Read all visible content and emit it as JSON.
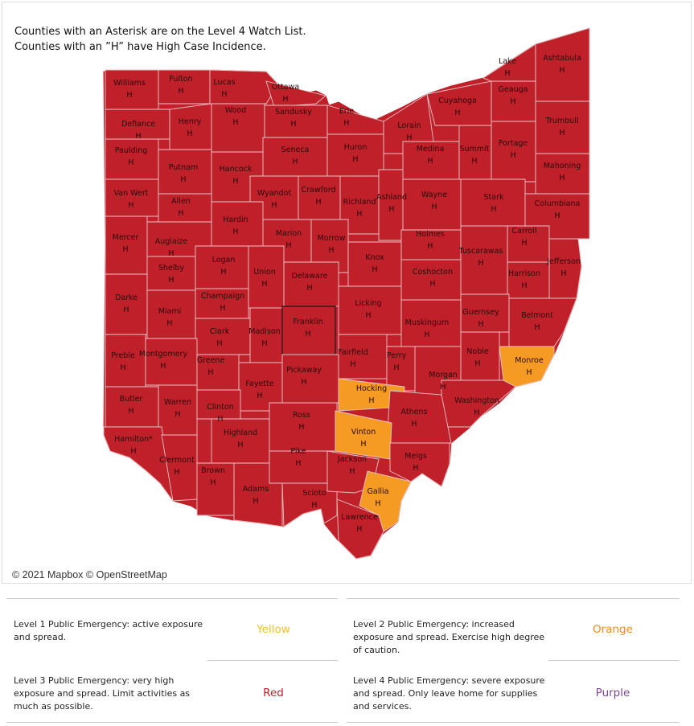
{
  "map": {
    "note_line1": "Counties with an Asterisk are on the Level 4 Watch List.",
    "note_line2": "Counties with an ”H” have High Case Incidence.",
    "credit": "© 2021 Mapbox © OpenStreetMap",
    "colors": {
      "red": "#c0202a",
      "orange": "#f59a23",
      "border": "#e8c4c4"
    },
    "counties": [
      {
        "name": "Williams",
        "mark": "H",
        "level": "Red"
      },
      {
        "name": "Fulton",
        "mark": "H",
        "level": "Red"
      },
      {
        "name": "Lucas",
        "mark": "H",
        "level": "Red"
      },
      {
        "name": "Ottawa",
        "mark": "H",
        "level": "Red"
      },
      {
        "name": "Defiance",
        "mark": "H",
        "level": "Red"
      },
      {
        "name": "Henry",
        "mark": "H",
        "level": "Red"
      },
      {
        "name": "Wood",
        "mark": "H",
        "level": "Red"
      },
      {
        "name": "Sandusky",
        "mark": "H",
        "level": "Red"
      },
      {
        "name": "Erie",
        "mark": "H",
        "level": "Red"
      },
      {
        "name": "Lorain",
        "mark": "H",
        "level": "Red"
      },
      {
        "name": "Cuyahoga",
        "mark": "H",
        "level": "Red"
      },
      {
        "name": "Lake",
        "mark": "H",
        "level": "Red"
      },
      {
        "name": "Geauga",
        "mark": "H",
        "level": "Red"
      },
      {
        "name": "Ashtabula",
        "mark": "H",
        "level": "Red"
      },
      {
        "name": "Trumbull",
        "mark": "H",
        "level": "Red"
      },
      {
        "name": "Paulding",
        "mark": "H",
        "level": "Red"
      },
      {
        "name": "Putnam",
        "mark": "H",
        "level": "Red"
      },
      {
        "name": "Hancock",
        "mark": "H",
        "level": "Red"
      },
      {
        "name": "Seneca",
        "mark": "H",
        "level": "Red"
      },
      {
        "name": "Huron",
        "mark": "H",
        "level": "Red"
      },
      {
        "name": "Medina",
        "mark": "H",
        "level": "Red"
      },
      {
        "name": "Summit",
        "mark": "H",
        "level": "Red"
      },
      {
        "name": "Portage",
        "mark": "H",
        "level": "Red"
      },
      {
        "name": "Mahoning",
        "mark": "H",
        "level": "Red"
      },
      {
        "name": "Van Wert",
        "mark": "H",
        "level": "Red"
      },
      {
        "name": "Allen",
        "mark": "H",
        "level": "Red"
      },
      {
        "name": "Wyandot",
        "mark": "H",
        "level": "Red"
      },
      {
        "name": "Crawford",
        "mark": "H",
        "level": "Red"
      },
      {
        "name": "Richland",
        "mark": "H",
        "level": "Red"
      },
      {
        "name": "Ashland",
        "mark": "H",
        "level": "Red"
      },
      {
        "name": "Wayne",
        "mark": "H",
        "level": "Red"
      },
      {
        "name": "Stark",
        "mark": "H",
        "level": "Red"
      },
      {
        "name": "Columbiana",
        "mark": "H",
        "level": "Red"
      },
      {
        "name": "Mercer",
        "mark": "H",
        "level": "Red"
      },
      {
        "name": "Auglaize",
        "mark": "H",
        "level": "Red"
      },
      {
        "name": "Hardin",
        "mark": "H",
        "level": "Red"
      },
      {
        "name": "Marion",
        "mark": "H",
        "level": "Red"
      },
      {
        "name": "Morrow",
        "mark": "H",
        "level": "Red"
      },
      {
        "name": "Knox",
        "mark": "H",
        "level": "Red"
      },
      {
        "name": "Holmes",
        "mark": "H",
        "level": "Red"
      },
      {
        "name": "Tuscarawas",
        "mark": "H",
        "level": "Red"
      },
      {
        "name": "Carroll",
        "mark": "H",
        "level": "Red"
      },
      {
        "name": "Jefferson",
        "mark": "H",
        "level": "Red"
      },
      {
        "name": "Shelby",
        "mark": "H",
        "level": "Red"
      },
      {
        "name": "Logan",
        "mark": "H",
        "level": "Red"
      },
      {
        "name": "Union",
        "mark": "H",
        "level": "Red"
      },
      {
        "name": "Delaware",
        "mark": "H",
        "level": "Red"
      },
      {
        "name": "Coshocton",
        "mark": "H",
        "level": "Red"
      },
      {
        "name": "Harrison",
        "mark": "H",
        "level": "Red"
      },
      {
        "name": "Darke",
        "mark": "H",
        "level": "Red"
      },
      {
        "name": "Champaign",
        "mark": "H",
        "level": "Red"
      },
      {
        "name": "Licking",
        "mark": "H",
        "level": "Red"
      },
      {
        "name": "Guernsey",
        "mark": "H",
        "level": "Red"
      },
      {
        "name": "Belmont",
        "mark": "H",
        "level": "Red"
      },
      {
        "name": "Miami",
        "mark": "H",
        "level": "Red"
      },
      {
        "name": "Clark",
        "mark": "H",
        "level": "Red"
      },
      {
        "name": "Madison",
        "mark": "H",
        "level": "Red"
      },
      {
        "name": "Franklin",
        "mark": "H",
        "level": "Red"
      },
      {
        "name": "Muskingum",
        "mark": "H",
        "level": "Red"
      },
      {
        "name": "Noble",
        "mark": "H",
        "level": "Red"
      },
      {
        "name": "Monroe",
        "mark": "H",
        "level": "Orange"
      },
      {
        "name": "Preble",
        "mark": "H",
        "level": "Red"
      },
      {
        "name": "Montgomery",
        "mark": "H",
        "level": "Red"
      },
      {
        "name": "Greene",
        "mark": "H",
        "level": "Red"
      },
      {
        "name": "Fayette",
        "mark": "H",
        "level": "Red"
      },
      {
        "name": "Pickaway",
        "mark": "H",
        "level": "Red"
      },
      {
        "name": "Fairfield",
        "mark": "H",
        "level": "Red"
      },
      {
        "name": "Perry",
        "mark": "H",
        "level": "Red"
      },
      {
        "name": "Morgan",
        "mark": "H",
        "level": "Red"
      },
      {
        "name": "Washington",
        "mark": "H",
        "level": "Red"
      },
      {
        "name": "Butler",
        "mark": "H",
        "level": "Red"
      },
      {
        "name": "Warren",
        "mark": "H",
        "level": "Red"
      },
      {
        "name": "Clinton",
        "mark": "H",
        "level": "Red"
      },
      {
        "name": "Highland",
        "mark": "H",
        "level": "Red"
      },
      {
        "name": "Ross",
        "mark": "H",
        "level": "Red"
      },
      {
        "name": "Hocking",
        "mark": "H",
        "level": "Orange"
      },
      {
        "name": "Athens",
        "mark": "H",
        "level": "Red"
      },
      {
        "name": "Vinton",
        "mark": "H",
        "level": "Orange"
      },
      {
        "name": "Hamilton*",
        "mark": "H",
        "level": "Red"
      },
      {
        "name": "Clermont",
        "mark": "H",
        "level": "Red"
      },
      {
        "name": "Brown",
        "mark": "H",
        "level": "Red"
      },
      {
        "name": "Adams",
        "mark": "H",
        "level": "Red"
      },
      {
        "name": "Pike",
        "mark": "H",
        "level": "Red"
      },
      {
        "name": "Scioto",
        "mark": "H",
        "level": "Red"
      },
      {
        "name": "Jackson",
        "mark": "H",
        "level": "Red"
      },
      {
        "name": "Meigs",
        "mark": "H",
        "level": "Red"
      },
      {
        "name": "Gallia",
        "mark": "H",
        "level": "Orange"
      },
      {
        "name": "Lawrence",
        "mark": "H",
        "level": "Red"
      }
    ]
  },
  "legend": [
    {
      "description": "Level 1 Public Emergency: active exposure and spread.",
      "color_label": "Yellow",
      "color": "#f5c02c"
    },
    {
      "description": "Level 2 Public Emergency: increased exposure and spread. Exercise high degree of caution.",
      "color_label": "Orange",
      "color": "#f28c1c"
    },
    {
      "description": "Level 3 Public Emergency: very high exposure and spread. Limit activities as much as possible.",
      "color_label": "Red",
      "color": "#c0202a"
    },
    {
      "description": "Level 4 Public Emergency: severe exposure and spread. Only leave home for supplies and services.",
      "color_label": "Purple",
      "color": "#7b4a8f"
    }
  ]
}
